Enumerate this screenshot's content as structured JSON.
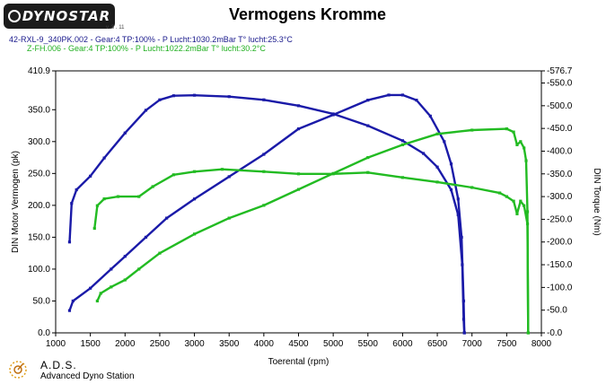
{
  "header": {
    "logo_text": "DYNOSTAR",
    "logo_sub": "v. 3 . 11",
    "run1": "42-RXL-9_340PK.002 - Gear:4 TP:100%   - P Lucht:1030.2mBar T° lucht:25.3°C",
    "run2": "Z-FH.006 - Gear:4 TP:100%   - P Lucht:1022.2mBar T° lucht:30.2°C"
  },
  "footer": {
    "name": "A.D.S.",
    "sub": "Advanced Dyno Station"
  },
  "colors": {
    "run1": "#1a1aa8",
    "run2": "#22bb22"
  },
  "chart_data": {
    "type": "line",
    "title": "Vermogens Kromme",
    "xlabel": "Toerental (rpm)",
    "ylabel_left": "DIN Motor Vermogen (pk)",
    "ylabel_right": "DIN Torque (Nm)",
    "x_ticks": [
      "1000",
      "1500",
      "2000",
      "2500",
      "3000",
      "3500",
      "4000",
      "4500",
      "5000",
      "5500",
      "6000",
      "6500",
      "7000",
      "7500",
      "8000"
    ],
    "xlim": [
      1000,
      8000
    ],
    "y_left_ticks": [
      "0.0",
      "50.0",
      "100.0",
      "150.0",
      "200.0",
      "250.0",
      "300.0",
      "350.0",
      "410.9"
    ],
    "y_left_lim": [
      0,
      410.9
    ],
    "y_right_ticks": [
      "-0.0",
      "-50.0",
      "-100.0",
      "-150.0",
      "-200.0",
      "-250.0",
      "-300.0",
      "-350.0",
      "-400.0",
      "-450.0",
      "-500.0",
      "-550.0",
      "-576.7"
    ],
    "y_right_lim": [
      0,
      576.7
    ],
    "series": [
      {
        "name": "42-RXL-9_340PK.002 power",
        "axis": "left",
        "color": "#1a1aa8",
        "points": [
          [
            1200,
            35
          ],
          [
            1250,
            50
          ],
          [
            1500,
            70
          ],
          [
            1800,
            100
          ],
          [
            2000,
            120
          ],
          [
            2300,
            150
          ],
          [
            2600,
            180
          ],
          [
            3000,
            210
          ],
          [
            3500,
            245
          ],
          [
            4000,
            280
          ],
          [
            4500,
            320
          ],
          [
            5000,
            342
          ],
          [
            5500,
            365
          ],
          [
            5800,
            373
          ],
          [
            6000,
            373
          ],
          [
            6200,
            365
          ],
          [
            6400,
            340
          ],
          [
            6600,
            300
          ],
          [
            6700,
            265
          ],
          [
            6800,
            210
          ],
          [
            6850,
            150
          ],
          [
            6880,
            50
          ],
          [
            6890,
            0
          ]
        ]
      },
      {
        "name": "42-RXL-9_340PK.002 torque",
        "axis": "right",
        "color": "#1a1aa8",
        "points": [
          [
            1200,
            200
          ],
          [
            1230,
            285
          ],
          [
            1300,
            315
          ],
          [
            1500,
            345
          ],
          [
            1700,
            385
          ],
          [
            2000,
            440
          ],
          [
            2300,
            490
          ],
          [
            2500,
            513
          ],
          [
            2700,
            522
          ],
          [
            3000,
            523
          ],
          [
            3500,
            520
          ],
          [
            4000,
            513
          ],
          [
            4500,
            500
          ],
          [
            5000,
            482
          ],
          [
            5500,
            456
          ],
          [
            6000,
            423
          ],
          [
            6300,
            395
          ],
          [
            6500,
            365
          ],
          [
            6700,
            315
          ],
          [
            6800,
            260
          ],
          [
            6860,
            150
          ],
          [
            6880,
            30
          ],
          [
            6890,
            0
          ]
        ]
      },
      {
        "name": "Z-FH.006 power",
        "axis": "left",
        "color": "#22bb22",
        "points": [
          [
            1600,
            50
          ],
          [
            1650,
            62
          ],
          [
            1800,
            72
          ],
          [
            2000,
            83
          ],
          [
            2200,
            100
          ],
          [
            2500,
            125
          ],
          [
            3000,
            155
          ],
          [
            3500,
            180
          ],
          [
            4000,
            200
          ],
          [
            4500,
            225
          ],
          [
            5000,
            250
          ],
          [
            5500,
            275
          ],
          [
            6000,
            295
          ],
          [
            6500,
            312
          ],
          [
            7000,
            318
          ],
          [
            7500,
            320
          ],
          [
            7600,
            315
          ],
          [
            7650,
            295
          ],
          [
            7700,
            300
          ],
          [
            7750,
            290
          ],
          [
            7780,
            270
          ],
          [
            7800,
            190
          ],
          [
            7810,
            0
          ]
        ]
      },
      {
        "name": "Z-FH.006 torque",
        "axis": "right",
        "color": "#22bb22",
        "points": [
          [
            1560,
            230
          ],
          [
            1600,
            280
          ],
          [
            1700,
            295
          ],
          [
            1900,
            300
          ],
          [
            2200,
            300
          ],
          [
            2400,
            322
          ],
          [
            2700,
            348
          ],
          [
            3000,
            355
          ],
          [
            3400,
            360
          ],
          [
            4000,
            355
          ],
          [
            4500,
            350
          ],
          [
            5000,
            350
          ],
          [
            5500,
            353
          ],
          [
            6000,
            342
          ],
          [
            6500,
            332
          ],
          [
            7000,
            320
          ],
          [
            7400,
            308
          ],
          [
            7500,
            300
          ],
          [
            7600,
            290
          ],
          [
            7650,
            262
          ],
          [
            7700,
            290
          ],
          [
            7750,
            280
          ],
          [
            7800,
            240
          ],
          [
            7810,
            0
          ]
        ]
      }
    ]
  }
}
